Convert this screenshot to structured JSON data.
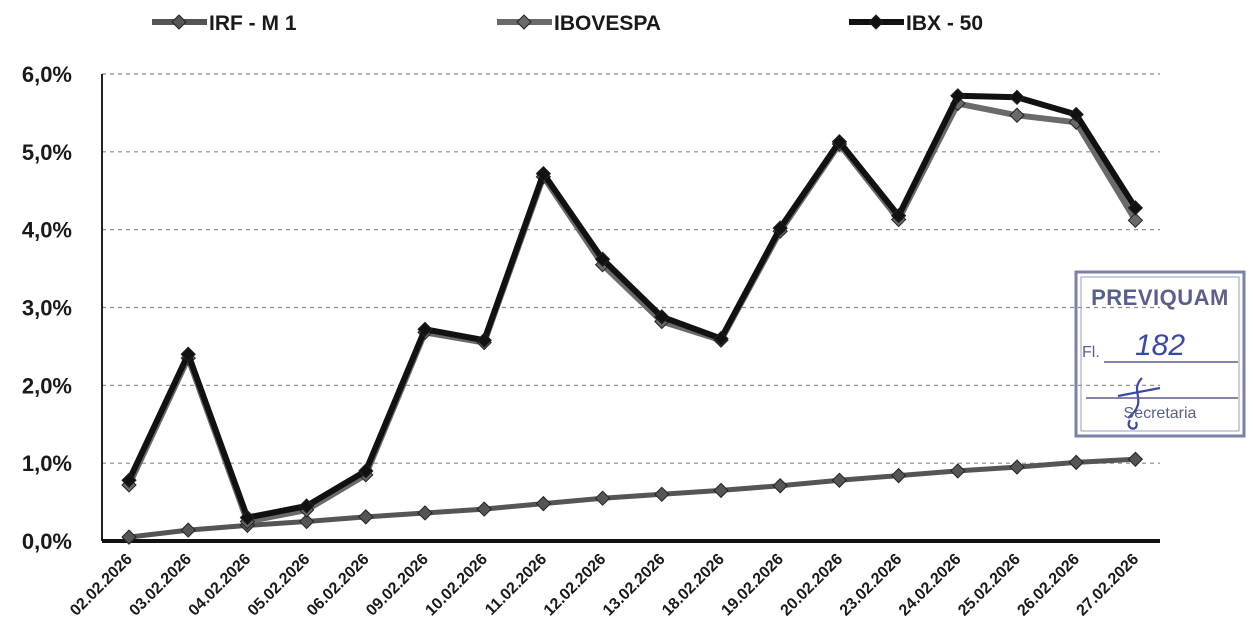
{
  "chart_data": {
    "type": "line",
    "categories": [
      "02.02.2026",
      "03.02.2026",
      "04.02.2026",
      "05.02.2026",
      "06.02.2026",
      "09.02.2026",
      "10.02.2026",
      "11.02.2026",
      "12.02.2026",
      "13.02.2026",
      "18.02.2026",
      "19.02.2026",
      "20.02.2026",
      "23.02.2026",
      "24.02.2026",
      "25.02.2026",
      "26.02.2026",
      "27.02.2026"
    ],
    "series": [
      {
        "name": "IRF - M 1",
        "color": "#555555",
        "values": [
          0.05,
          0.14,
          0.2,
          0.25,
          0.31,
          0.36,
          0.41,
          0.48,
          0.55,
          0.6,
          0.65,
          0.71,
          0.78,
          0.84,
          0.9,
          0.95,
          1.01,
          1.05
        ]
      },
      {
        "name": "IBOVESPA",
        "color": "#6a6a6a",
        "values": [
          0.72,
          2.35,
          0.25,
          0.4,
          0.85,
          2.68,
          2.55,
          4.68,
          3.55,
          2.82,
          2.58,
          3.98,
          5.1,
          4.13,
          5.62,
          5.47,
          5.38,
          4.12
        ]
      },
      {
        "name": "IBX - 50",
        "color": "#111111",
        "values": [
          0.78,
          2.4,
          0.3,
          0.45,
          0.9,
          2.72,
          2.58,
          4.72,
          3.62,
          2.88,
          2.6,
          4.02,
          5.13,
          4.18,
          5.72,
          5.7,
          5.48,
          4.28
        ]
      }
    ],
    "yticks": [
      "0,0%",
      "1,0%",
      "2,0%",
      "3,0%",
      "4,0%",
      "5,0%",
      "6,0%"
    ],
    "ylim": [
      0,
      6
    ],
    "grid": true,
    "legend_position": "top"
  },
  "stamp": {
    "title": "PREVIQUAM",
    "folio_label": "Fl.",
    "folio_number": "182",
    "role": "Secretaria",
    "color": "#5a5f8c"
  }
}
